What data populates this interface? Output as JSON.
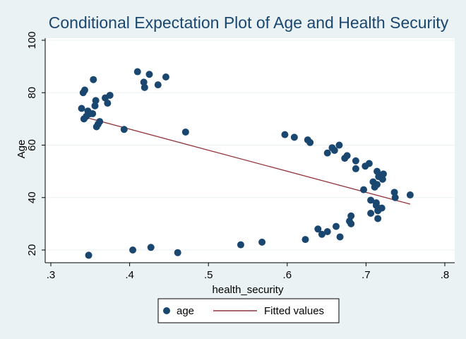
{
  "chart_data": {
    "type": "scatter",
    "title": "Conditional Expectation Plot of Age and Health Security",
    "xlabel": "health_security",
    "ylabel": "Age",
    "xlim": [
      0.3,
      0.8
    ],
    "ylim": [
      17,
      102
    ],
    "x_ticks": [
      0.3,
      0.4,
      0.5,
      0.6,
      0.7,
      0.8
    ],
    "x_tick_labels": [
      ".3",
      ".4",
      ".5",
      ".6",
      ".7",
      ".8"
    ],
    "y_ticks": [
      20,
      40,
      60,
      80,
      100
    ],
    "y_tick_labels": [
      "20",
      "40",
      "60",
      "80",
      "100"
    ],
    "grid": "horizontal",
    "legend_position": "bottom",
    "colors": {
      "points": "#1a476f",
      "fit": "#90353b",
      "background": "#eaf2f3",
      "plot_bg": "#ffffff",
      "title": "#1a476f",
      "grid": "#eaf2f3"
    },
    "series": [
      {
        "name": "age",
        "kind": "scatter",
        "points": [
          [
            0.339,
            74
          ],
          [
            0.341,
            80
          ],
          [
            0.343,
            81
          ],
          [
            0.342,
            70
          ],
          [
            0.345,
            71
          ],
          [
            0.347,
            73
          ],
          [
            0.35,
            72
          ],
          [
            0.353,
            72
          ],
          [
            0.354,
            85
          ],
          [
            0.356,
            75
          ],
          [
            0.357,
            77
          ],
          [
            0.358,
            67
          ],
          [
            0.36,
            68
          ],
          [
            0.362,
            69
          ],
          [
            0.369,
            78
          ],
          [
            0.372,
            76
          ],
          [
            0.375,
            79
          ],
          [
            0.393,
            66
          ],
          [
            0.41,
            88
          ],
          [
            0.418,
            84
          ],
          [
            0.419,
            82
          ],
          [
            0.425,
            87
          ],
          [
            0.436,
            83
          ],
          [
            0.446,
            86
          ],
          [
            0.471,
            65
          ],
          [
            0.348,
            18
          ],
          [
            0.404,
            20
          ],
          [
            0.427,
            21
          ],
          [
            0.461,
            19
          ],
          [
            0.541,
            22
          ],
          [
            0.568,
            23
          ],
          [
            0.597,
            64
          ],
          [
            0.609,
            63
          ],
          [
            0.626,
            62
          ],
          [
            0.629,
            61
          ],
          [
            0.651,
            57
          ],
          [
            0.657,
            59
          ],
          [
            0.66,
            58
          ],
          [
            0.666,
            60
          ],
          [
            0.673,
            55
          ],
          [
            0.676,
            56
          ],
          [
            0.687,
            54
          ],
          [
            0.687,
            51
          ],
          [
            0.699,
            52
          ],
          [
            0.704,
            53
          ],
          [
            0.697,
            43
          ],
          [
            0.709,
            46
          ],
          [
            0.711,
            44
          ],
          [
            0.714,
            45
          ],
          [
            0.714,
            50
          ],
          [
            0.716,
            48
          ],
          [
            0.721,
            47
          ],
          [
            0.722,
            49
          ],
          [
            0.706,
            39
          ],
          [
            0.713,
            38
          ],
          [
            0.713,
            37
          ],
          [
            0.715,
            35
          ],
          [
            0.72,
            36
          ],
          [
            0.706,
            34
          ],
          [
            0.715,
            32
          ],
          [
            0.736,
            42
          ],
          [
            0.737,
            40
          ],
          [
            0.756,
            41
          ],
          [
            0.623,
            24
          ],
          [
            0.639,
            28
          ],
          [
            0.644,
            26
          ],
          [
            0.651,
            27
          ],
          [
            0.662,
            29
          ],
          [
            0.667,
            25
          ],
          [
            0.679,
            31
          ],
          [
            0.681,
            33
          ],
          [
            0.681,
            30
          ]
        ]
      },
      {
        "name": "Fitted values",
        "kind": "line",
        "points": [
          [
            0.339,
            71
          ],
          [
            0.756,
            37.5
          ]
        ]
      }
    ]
  }
}
